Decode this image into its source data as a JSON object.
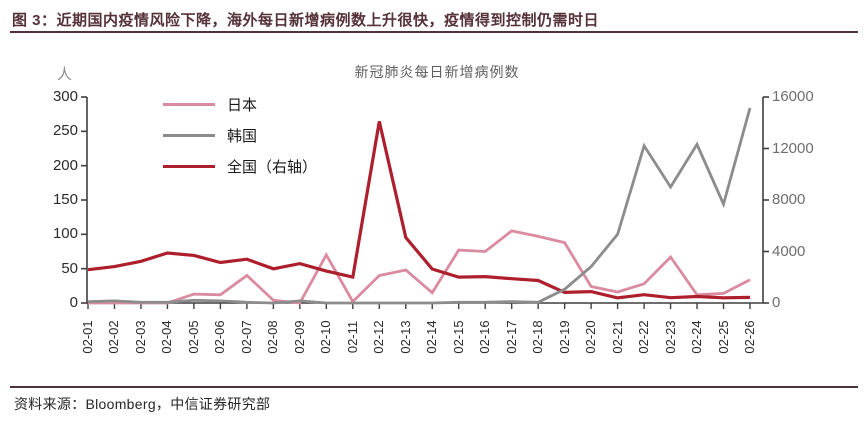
{
  "header": {
    "title": "图 3：近期国内疫情风险下降，海外每日新增病例数上升很快，疫情得到控制仍需时日"
  },
  "source": {
    "text": "资料来源：Bloomberg，中信证券研究部"
  },
  "colors": {
    "header_accent": "#4f333a",
    "japan_line": "#DA8BA0",
    "korea_line": "#8C8C8C",
    "china_line": "#AE1F2D",
    "axis": "#3f3f3f"
  },
  "chart_data": {
    "type": "line",
    "title": "新冠肺炎每日新增病例数",
    "left_axis": {
      "unit": "人",
      "range": [
        0,
        300
      ],
      "ticks": [
        0,
        50,
        100,
        150,
        200,
        250,
        300
      ]
    },
    "right_axis": {
      "range": [
        0,
        16000
      ],
      "ticks": [
        0,
        4000,
        8000,
        12000,
        16000
      ]
    },
    "legend_position": "upper-left",
    "grid": false,
    "categories": [
      "02-01",
      "02-02",
      "02-03",
      "02-04",
      "02-05",
      "02-06",
      "02-07",
      "02-08",
      "02-09",
      "02-10",
      "02-11",
      "02-12",
      "02-13",
      "02-14",
      "02-15",
      "02-16",
      "02-17",
      "02-18",
      "02-19",
      "02-20",
      "02-21",
      "02-22",
      "02-23",
      "02-24",
      "02-25",
      "02-26"
    ],
    "series": [
      {
        "name": "日本",
        "axis": "left",
        "color": "#DA8BA0",
        "width": 2.8,
        "values": [
          0,
          0,
          0,
          0,
          13,
          12,
          40,
          4,
          0,
          70,
          2,
          40,
          48,
          15,
          77,
          75,
          105,
          97,
          88,
          24,
          16,
          28,
          67,
          12,
          14,
          34
        ]
      },
      {
        "name": "全国（右轴）",
        "axis": "right",
        "color": "#AE1F2D",
        "width": 3.2,
        "values": [
          2590,
          2829,
          3235,
          3887,
          3694,
          3143,
          3399,
          2656,
          3062,
          2478,
          2015,
          14108,
          5090,
          2641,
          2009,
          2048,
          1886,
          1749,
          820,
          889,
          397,
          648,
          409,
          508,
          406,
          433
        ]
      },
      {
        "name": "韩国",
        "axis": "left",
        "color": "#8C8C8C",
        "width": 2.8,
        "values": [
          2,
          3,
          1,
          1,
          4,
          3,
          1,
          0,
          3,
          0,
          0,
          0,
          0,
          0,
          1,
          1,
          2,
          1,
          20,
          53,
          100,
          229,
          169,
          231,
          144,
          284
        ]
      }
    ],
    "legend_order": [
      "日本",
      "韩国",
      "全国（右轴）"
    ]
  }
}
